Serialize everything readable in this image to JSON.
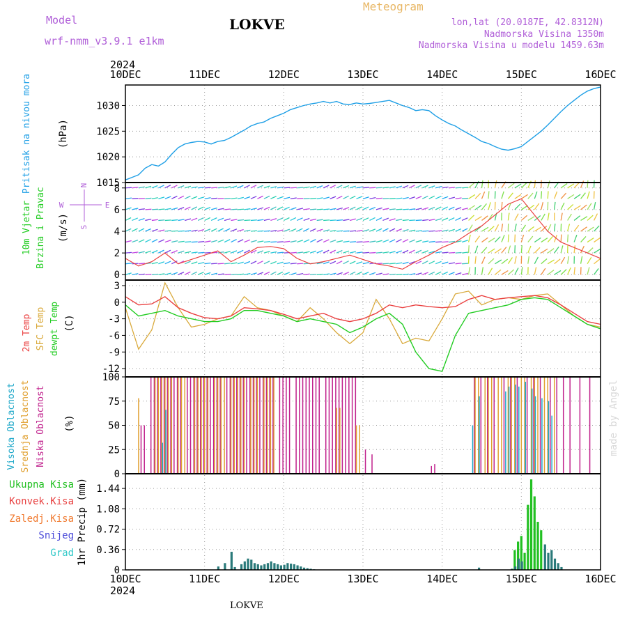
{
  "header": {
    "model_label": "Model",
    "model_name": "wrf-nmm_v3.9.1 e1km",
    "station": "LOKVE",
    "title": "Meteogram",
    "lonlat": "lon,lat (20.0187E, 42.8312N)",
    "elevation": "Nadmorska Visina 1350m",
    "model_elevation": "Nadmorska Visina u modelu 1459.63m",
    "footer": "LOKVE",
    "watermark": "made by Angel"
  },
  "time_axis": {
    "year": "2024",
    "ticks": [
      "10DEC",
      "11DEC",
      "12DEC",
      "13DEC",
      "14DEC",
      "15DEC",
      "16DEC"
    ]
  },
  "colors": {
    "pressure": "#1e9fe6",
    "t2m": "#ea4040",
    "sfc": "#d9a93a",
    "dew": "#22cc22",
    "high": "#1fa8c9",
    "mid": "#e0a030",
    "low": "#c0208c",
    "total": "#22c022",
    "conv": "#e84040",
    "frz": "#f07a30",
    "snow": "#4848d8",
    "hail": "#30c8c8"
  },
  "chart_data": [
    {
      "type": "line",
      "title": "",
      "ylabel_color": "Pritisak na nivou mora",
      "ylabel": "(hPa)",
      "yticks": [
        1015,
        1020,
        1025,
        1030
      ],
      "ylim": [
        1015,
        1034
      ],
      "xlim": [
        0,
        144
      ],
      "series": [
        {
          "name": "Pritisak na nivou mora",
          "x": [
            0,
            2,
            4,
            6,
            8,
            10,
            12,
            14,
            16,
            18,
            20,
            22,
            24,
            26,
            28,
            30,
            32,
            34,
            36,
            38,
            40,
            42,
            44,
            46,
            48,
            50,
            52,
            54,
            56,
            58,
            60,
            62,
            64,
            66,
            68,
            70,
            72,
            74,
            76,
            78,
            80,
            82,
            84,
            86,
            88,
            90,
            92,
            94,
            96,
            98,
            100,
            102,
            104,
            106,
            108,
            110,
            112,
            114,
            116,
            118,
            120,
            122,
            124,
            126,
            128,
            130,
            132,
            134,
            136,
            138,
            140,
            142,
            144
          ],
          "y": [
            1015.5,
            1016.0,
            1016.5,
            1017.8,
            1018.5,
            1018.2,
            1019.0,
            1020.5,
            1021.8,
            1022.5,
            1022.8,
            1023.0,
            1022.9,
            1022.5,
            1023.0,
            1023.2,
            1023.8,
            1024.5,
            1025.2,
            1026.0,
            1026.5,
            1026.8,
            1027.5,
            1028.0,
            1028.5,
            1029.2,
            1029.6,
            1030.0,
            1030.3,
            1030.5,
            1030.8,
            1030.5,
            1030.8,
            1030.3,
            1030.2,
            1030.5,
            1030.3,
            1030.4,
            1030.6,
            1030.8,
            1031.0,
            1030.5,
            1030.0,
            1029.6,
            1029.0,
            1029.2,
            1029.0,
            1028.0,
            1027.2,
            1026.5,
            1026.0,
            1025.2,
            1024.5,
            1023.8,
            1023.0,
            1022.6,
            1022.0,
            1021.5,
            1021.3,
            1021.6,
            1022.0,
            1023.0,
            1024.0,
            1025.0,
            1026.2,
            1027.5,
            1028.8,
            1030.0,
            1031.0,
            1032.0,
            1032.8,
            1033.3,
            1033.6
          ]
        }
      ]
    },
    {
      "type": "line",
      "title": "",
      "ylabel_color1": "10m Vjetar",
      "ylabel_color2": "Brzina i Pravac",
      "ylabel": "(m/s)",
      "legend_n": "N",
      "legend_w": "W",
      "legend_e": "E",
      "legend_s": "S",
      "yticks": [
        0,
        2,
        4,
        6,
        8
      ],
      "ylim": [
        -0.5,
        8.5
      ],
      "xlim": [
        0,
        144
      ],
      "series": [
        {
          "name": "wind speed",
          "x": [
            0,
            4,
            8,
            12,
            16,
            20,
            24,
            28,
            32,
            36,
            40,
            44,
            48,
            52,
            56,
            60,
            64,
            68,
            72,
            76,
            80,
            84,
            88,
            92,
            96,
            100,
            104,
            108,
            112,
            116,
            120,
            124,
            128,
            132,
            136,
            140,
            144
          ],
          "y": [
            1.5,
            0.8,
            1.2,
            2.0,
            1.0,
            1.4,
            1.8,
            2.2,
            1.2,
            1.8,
            2.5,
            2.6,
            2.4,
            1.5,
            1.0,
            1.2,
            1.5,
            1.8,
            1.4,
            1.0,
            0.8,
            0.5,
            1.2,
            1.8,
            2.5,
            3.0,
            3.8,
            4.5,
            5.5,
            6.5,
            7.0,
            5.5,
            4.0,
            3.0,
            2.5,
            2.0,
            1.5
          ]
        }
      ]
    },
    {
      "type": "line",
      "title": "",
      "ylabel_t2m": "2m Temp",
      "ylabel_sfc": "SFC Temp",
      "ylabel_dew": "dewpt Temp",
      "ylabel": "(C)",
      "yticks": [
        3,
        0,
        -3,
        -6,
        -9,
        -12
      ],
      "ylim": [
        -13.5,
        4
      ],
      "xlim": [
        0,
        144
      ],
      "series": [
        {
          "name": "2m Temp",
          "x": [
            0,
            4,
            8,
            12,
            16,
            20,
            24,
            28,
            32,
            36,
            40,
            44,
            48,
            52,
            56,
            60,
            64,
            68,
            72,
            76,
            80,
            84,
            88,
            92,
            96,
            100,
            104,
            108,
            112,
            116,
            120,
            124,
            128,
            132,
            136,
            140,
            144
          ],
          "y": [
            1.0,
            -0.5,
            -0.3,
            1.0,
            -1.0,
            -2.0,
            -2.8,
            -3.0,
            -2.5,
            -1.0,
            -1.2,
            -1.5,
            -2.2,
            -3.0,
            -2.5,
            -2.0,
            -3.0,
            -3.5,
            -3.0,
            -2.0,
            -0.5,
            -1.0,
            -0.5,
            -0.8,
            -1.0,
            -0.8,
            0.5,
            1.2,
            0.5,
            0.8,
            1.0,
            1.2,
            0.8,
            -0.5,
            -2.0,
            -3.5,
            -4.0
          ]
        },
        {
          "name": "SFC Temp",
          "x": [
            0,
            4,
            8,
            12,
            16,
            20,
            24,
            28,
            32,
            36,
            40,
            44,
            48,
            52,
            56,
            60,
            64,
            68,
            72,
            76,
            80,
            84,
            88,
            92,
            96,
            100,
            104,
            108,
            112,
            116,
            120,
            124,
            128,
            132,
            136,
            140,
            144
          ],
          "y": [
            -1.0,
            -8.5,
            -5.0,
            3.5,
            -1.0,
            -4.5,
            -4.0,
            -3.0,
            -2.5,
            1.0,
            -1.0,
            -1.5,
            -2.5,
            -3.5,
            -1.0,
            -3.0,
            -5.5,
            -7.5,
            -5.5,
            0.5,
            -3.0,
            -7.5,
            -6.5,
            -7.0,
            -3.0,
            1.5,
            2.0,
            -0.5,
            0.5,
            0.8,
            0.5,
            1.2,
            1.5,
            -0.5,
            -2.5,
            -4.0,
            -4.5
          ]
        },
        {
          "name": "dewpt Temp",
          "x": [
            0,
            4,
            8,
            12,
            16,
            20,
            24,
            28,
            32,
            36,
            40,
            44,
            48,
            52,
            56,
            60,
            64,
            68,
            72,
            76,
            80,
            84,
            88,
            92,
            96,
            100,
            104,
            108,
            112,
            116,
            120,
            124,
            128,
            132,
            136,
            140,
            144
          ],
          "y": [
            -0.5,
            -2.5,
            -2.0,
            -1.5,
            -2.5,
            -3.0,
            -3.5,
            -3.5,
            -3.0,
            -1.5,
            -1.5,
            -2.0,
            -2.5,
            -3.5,
            -3.0,
            -3.5,
            -4.0,
            -5.5,
            -4.5,
            -3.0,
            -2.0,
            -4.0,
            -9.0,
            -12.0,
            -12.5,
            -6.0,
            -2.0,
            -1.5,
            -1.0,
            -0.5,
            0.5,
            0.8,
            0.5,
            -1.0,
            -2.5,
            -4.0,
            -4.8
          ]
        }
      ]
    },
    {
      "type": "bar",
      "title": "",
      "ylabel_high": "Visoka Oblacnost",
      "ylabel_mid": "Srednja Oblacnost",
      "ylabel_low": "Niska Oblacnost",
      "ylabel": "(%)",
      "yticks": [
        0,
        25,
        50,
        75,
        100
      ],
      "ylim": [
        0,
        100
      ],
      "xlim": [
        0,
        144
      ],
      "series": [
        {
          "name": "Niska Oblacnost",
          "x": [
            5,
            6,
            8,
            9,
            10,
            11,
            12,
            13,
            14,
            15,
            16,
            17,
            19,
            20,
            21,
            22,
            23,
            24,
            25,
            26,
            27,
            28,
            29,
            31,
            32,
            33,
            34,
            35,
            36,
            37,
            38,
            39,
            40,
            41,
            42,
            43,
            44,
            45,
            47,
            48,
            49,
            50,
            52,
            53,
            54,
            55,
            56,
            57,
            58,
            59,
            61,
            62,
            63,
            64,
            65,
            66,
            67,
            68,
            69,
            70,
            73,
            75,
            93,
            94,
            106,
            108,
            110,
            112,
            115,
            117,
            119,
            122,
            124,
            126,
            129,
            131,
            133,
            135,
            138,
            141
          ],
          "y": [
            50,
            50,
            100,
            100,
            100,
            100,
            100,
            100,
            100,
            100,
            100,
            100,
            100,
            100,
            100,
            100,
            100,
            100,
            100,
            100,
            100,
            100,
            100,
            100,
            100,
            100,
            100,
            100,
            100,
            100,
            100,
            100,
            100,
            100,
            100,
            100,
            100,
            100,
            100,
            100,
            100,
            100,
            100,
            100,
            100,
            100,
            100,
            100,
            100,
            100,
            100,
            100,
            100,
            100,
            100,
            100,
            100,
            100,
            100,
            100,
            25,
            20,
            8,
            10,
            100,
            100,
            100,
            100,
            100,
            100,
            100,
            100,
            100,
            100,
            100,
            100,
            100,
            100,
            100,
            100
          ]
        },
        {
          "name": "Srednja Oblacnost",
          "x": [
            4,
            9,
            10,
            11,
            12,
            13,
            14,
            16,
            17,
            18,
            21,
            22,
            23,
            24,
            25,
            27,
            28,
            29,
            30,
            32,
            33,
            34,
            35,
            36,
            38,
            39,
            40,
            42,
            43,
            44,
            45,
            64,
            65,
            70,
            71,
            106,
            107,
            109,
            110,
            111,
            113,
            114,
            116,
            117,
            118,
            120,
            121,
            123,
            124,
            125,
            127,
            128,
            130
          ],
          "y": [
            78,
            100,
            100,
            100,
            100,
            100,
            100,
            100,
            100,
            100,
            100,
            100,
            100,
            100,
            100,
            100,
            100,
            100,
            100,
            100,
            100,
            100,
            100,
            100,
            100,
            100,
            100,
            100,
            100,
            100,
            100,
            68,
            68,
            50,
            50,
            100,
            100,
            100,
            100,
            100,
            100,
            100,
            100,
            100,
            100,
            100,
            100,
            100,
            100,
            100,
            100,
            100,
            100
          ]
        },
        {
          "name": "Visoka Oblacnost",
          "x": [
            11,
            12,
            105,
            107,
            115,
            116,
            118,
            119,
            121,
            123,
            124,
            126,
            128,
            129
          ],
          "y": [
            32,
            66,
            50,
            80,
            85,
            90,
            92,
            90,
            95,
            88,
            80,
            78,
            75,
            60
          ]
        }
      ]
    },
    {
      "type": "bar",
      "title": "",
      "legend": [
        "Ukupna Kisa",
        "Konvek.Kisa",
        "Zaledj.Kisa",
        "Snijeg",
        "Grad"
      ],
      "ylabel": "1hr Precip (mm)",
      "yticks": [
        0,
        0.36,
        0.72,
        1.08,
        1.44
      ],
      "ytick_labels": [
        "0",
        "0.36",
        "0.72",
        "1.08",
        "1.44"
      ],
      "ylim": [
        0,
        1.7
      ],
      "xlim": [
        0,
        144
      ],
      "series": [
        {
          "name": "Ukupna Kisa",
          "x": [
            118,
            119,
            120,
            121,
            122,
            123,
            124,
            125,
            126
          ],
          "y": [
            0.35,
            0.5,
            0.6,
            0.3,
            1.15,
            1.6,
            1.3,
            0.85,
            0.7
          ]
        },
        {
          "name": "Snijeg",
          "x": [
            28,
            30,
            32,
            33,
            35,
            36,
            37,
            38,
            39,
            40,
            41,
            42,
            43,
            44,
            45,
            46,
            47,
            48,
            49,
            50,
            51,
            52,
            53,
            54,
            55,
            56,
            57,
            107,
            117,
            118,
            119,
            120,
            127,
            128,
            129,
            130,
            131,
            132
          ],
          "y": [
            0.06,
            0.12,
            0.32,
            0.05,
            0.1,
            0.15,
            0.2,
            0.18,
            0.12,
            0.1,
            0.08,
            0.1,
            0.12,
            0.15,
            0.12,
            0.1,
            0.08,
            0.09,
            0.12,
            0.11,
            0.1,
            0.08,
            0.06,
            0.04,
            0.03,
            0.02,
            0.01,
            0.04,
            0.02,
            0.06,
            0.2,
            0.15,
            0.45,
            0.3,
            0.35,
            0.2,
            0.12,
            0.05
          ]
        }
      ]
    }
  ]
}
